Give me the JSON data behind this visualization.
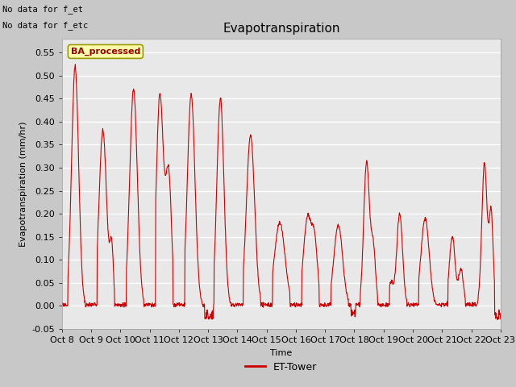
{
  "title": "Evapotranspiration",
  "xlabel": "Time",
  "ylabel": "Evapotranspiration (mm/hr)",
  "ylim": [
    -0.05,
    0.58
  ],
  "yticks": [
    -0.05,
    0.0,
    0.05,
    0.1,
    0.15,
    0.2,
    0.25,
    0.3,
    0.35,
    0.4,
    0.45,
    0.5,
    0.55
  ],
  "line_color": "#CC0000",
  "line_label": "ET-Tower",
  "fig_bg_color": "#C8C8C8",
  "plot_bg_color": "#E8E8E8",
  "annotation_text1": "No data for f_et",
  "annotation_text2": "No data for f_etc",
  "legend_text": "BA_processed",
  "x_labels": [
    "Oct 8",
    "Oct 9",
    "Oct 10",
    "Oct 11",
    "Oct 12",
    "Oct 13",
    "Oct 14",
    "Oct 15",
    "Oct 16",
    "Oct 17",
    "Oct 18",
    "Oct 19",
    "Oct 20",
    "Oct 21",
    "Oct 22",
    "Oct 23"
  ],
  "title_fontsize": 11,
  "label_fontsize": 8,
  "tick_fontsize": 8
}
